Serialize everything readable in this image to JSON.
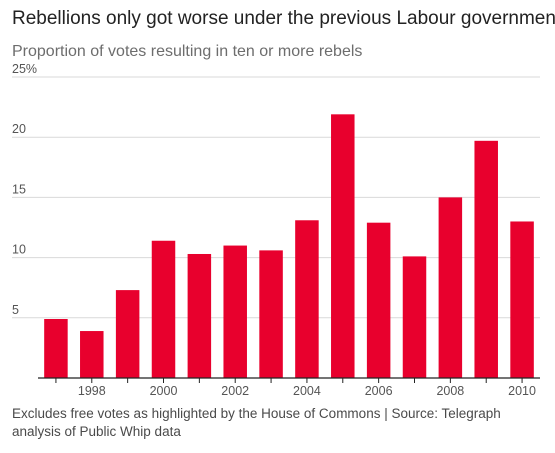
{
  "title": "Rebellions only got worse under the previous Labour government",
  "subtitle": "Proportion of votes resulting in ten or more rebels",
  "footer": "Excludes free votes as highlighted by the House of Commons | Source: Telegraph analysis of Public Whip data",
  "colors": {
    "bar": "#e8002d",
    "grid": "#d9d9d9",
    "axis": "#222222",
    "text": "#555555"
  },
  "chart_data": {
    "type": "bar",
    "categories": [
      "1997",
      "1998",
      "1999",
      "2000",
      "2001",
      "2002",
      "2003",
      "2004",
      "2005",
      "2006",
      "2007",
      "2008",
      "2009",
      "2010"
    ],
    "values": [
      4.9,
      3.9,
      7.3,
      11.4,
      10.3,
      11.0,
      10.6,
      13.1,
      21.9,
      12.9,
      10.1,
      15.0,
      19.7,
      13.0
    ],
    "x_tick_labels": [
      "",
      "1998",
      "",
      "2000",
      "",
      "2002",
      "",
      "2004",
      "",
      "2006",
      "",
      "2008",
      "",
      "2010"
    ],
    "y_ticks": [
      5,
      10,
      15,
      20,
      25
    ],
    "y_tick_labels": [
      "5",
      "10",
      "15",
      "20",
      "25%"
    ],
    "ylim": [
      0,
      25
    ],
    "grid": true
  }
}
